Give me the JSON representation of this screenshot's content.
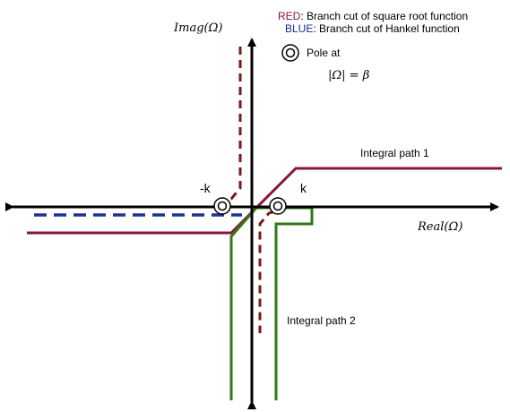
{
  "legend": {
    "red_key": "RED",
    "red_text": ": Branch cut of square root function",
    "blue_key": "BLUE",
    "blue_text": ": Branch cut of Hankel function",
    "red_color": "#8b1538",
    "blue_color": "#1a2a8f"
  },
  "axes": {
    "imag_label": "Imag(Ω)",
    "real_label": "Real(Ω)"
  },
  "pole": {
    "label": "Pole at",
    "condition": "|Ω| = β"
  },
  "points": {
    "neg_k": "-k",
    "pos_k": "k"
  },
  "paths": {
    "path1_label": "Integral path 1",
    "path2_label": "Integral path 2",
    "path1_color": "#8b1538",
    "path2_color": "#2f7a17",
    "branch_cut_red": "#7a1a1a",
    "branch_cut_blue": "#1a3399"
  }
}
